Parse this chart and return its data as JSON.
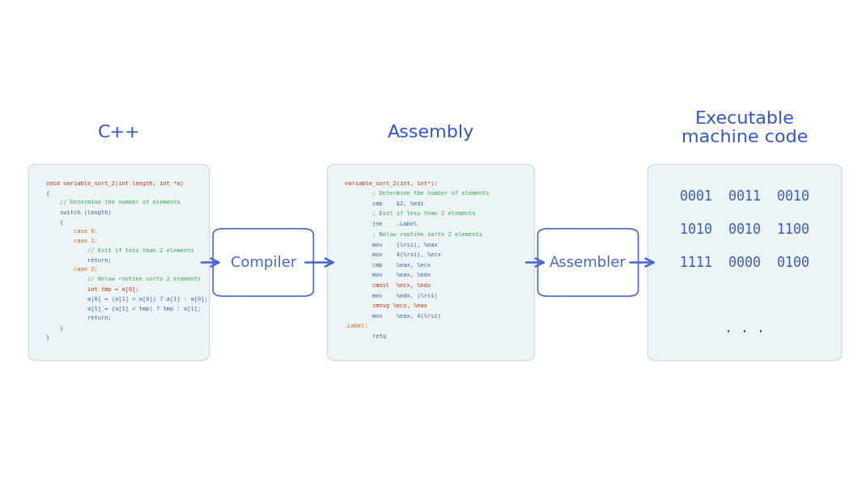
{
  "background_color": "#ffffff",
  "box_bg": "#edf4f8",
  "box_edge": "#c8d8e4",
  "title_color": "#3355cc",
  "arrow_color": "#4466cc",
  "cpp_title": "C++",
  "assembly_title": "Assembly",
  "machine_title": "Executable\nmachine code",
  "compiler_label": "Compiler",
  "assembler_label": "Assembler",
  "cpp_code": [
    [
      "void variable_sort_2(int length, int *a)",
      "#cc3300"
    ],
    [
      "{",
      "#3366aa"
    ],
    [
      "    // Determine the number of elements",
      "#33aa44"
    ],
    [
      "    switch (length)",
      "#3366aa"
    ],
    [
      "    {",
      "#3366aa"
    ],
    [
      "        case 0:",
      "#cc6600"
    ],
    [
      "        case 1:",
      "#cc6600"
    ],
    [
      "            // Exit if less than 2 elements",
      "#33aa44"
    ],
    [
      "            return;",
      "#3366aa"
    ],
    [
      "        case 2:",
      "#cc6600"
    ],
    [
      "            // Below routine sorts 2 elements",
      "#33aa44"
    ],
    [
      "            int tmp = a[0];",
      "#cc3300"
    ],
    [
      "            a[0] = (a[1] < a[0]) ? a[1] : a[0];",
      "#3366aa"
    ],
    [
      "            a[1] = (a[1] < tmp) ? tmp : a[1];",
      "#3366aa"
    ],
    [
      "            return;",
      "#3366aa"
    ],
    [
      "    }",
      "#3366aa"
    ],
    [
      "}",
      "#3366aa"
    ]
  ],
  "asm_code": [
    [
      "variable_sort_2(int, int*):",
      "#cc3300"
    ],
    [
      "        ; Determine the number of elements",
      "#33aa44"
    ],
    [
      "        cmp    $2, %edi",
      "#3366aa"
    ],
    [
      "        ; Exit if less than 2 elements",
      "#33aa44"
    ],
    [
      "        jne    .Label",
      "#3366aa"
    ],
    [
      "        ; Below routine sorts 2 elements",
      "#33aa44"
    ],
    [
      "        mov    (%rsi), %eax",
      "#3366aa"
    ],
    [
      "        mov    4(%rsi), %ecx",
      "#3366aa"
    ],
    [
      "        cmp    %eax, %ecx",
      "#3366aa"
    ],
    [
      "        mov    %eax, %edx",
      "#3366aa"
    ],
    [
      "        cmovl  %ecx, %edx",
      "#cc3300"
    ],
    [
      "        mov    %edx, (%rsi)",
      "#3366aa"
    ],
    [
      "        cmovg %ecx, %eax",
      "#cc3300"
    ],
    [
      "        mov    %eax, 4(%rsi)",
      "#3366aa"
    ],
    [
      ".Label:",
      "#cc6600"
    ],
    [
      "        retq",
      "#3366aa"
    ]
  ],
  "machine_lines": [
    [
      "0001  0011  0010",
      "#3355cc"
    ],
    [
      "1010  0010  1100",
      "#3355cc"
    ],
    [
      "1111  0000  0100",
      "#3355cc"
    ],
    [
      "",
      "#3355cc"
    ],
    [
      ". . .",
      "#3355cc"
    ]
  ],
  "title_fontsize": 16,
  "code_fontsize": 5.0,
  "label_fontsize": 13,
  "machine_fontsize": 12
}
